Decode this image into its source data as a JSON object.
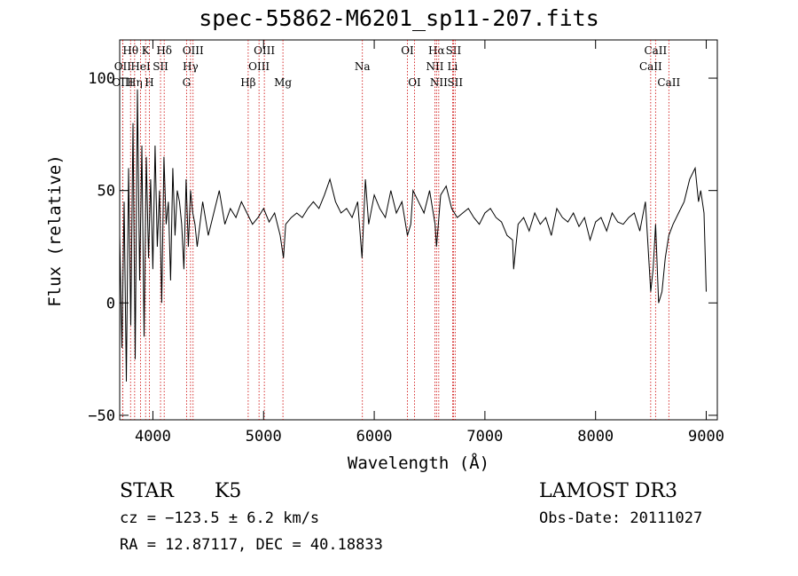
{
  "chart_data": {
    "type": "line",
    "title": "spec-55862-M6201_sp11-207.fits",
    "xlabel": "Wavelength (Å)",
    "ylabel": "Flux (relative)",
    "xlim": [
      3700,
      9100
    ],
    "ylim": [
      -52,
      117
    ],
    "x_ticks": [
      4000,
      5000,
      6000,
      7000,
      8000,
      9000
    ],
    "x_tick_labels": [
      "4000",
      "5000",
      "6000",
      "7000",
      "8000",
      "9000"
    ],
    "y_ticks": [
      -50,
      0,
      50,
      100
    ],
    "y_tick_labels": [
      "−50",
      "0",
      "50",
      "100"
    ],
    "line_color": "#000000",
    "marker_color": "#cc0000",
    "series": [
      {
        "name": "flux",
        "x": [
          3700,
          3720,
          3740,
          3760,
          3780,
          3800,
          3820,
          3840,
          3860,
          3880,
          3900,
          3920,
          3940,
          3960,
          3980,
          4000,
          4020,
          4040,
          4060,
          4080,
          4100,
          4120,
          4140,
          4160,
          4180,
          4200,
          4220,
          4240,
          4260,
          4280,
          4300,
          4320,
          4340,
          4360,
          4380,
          4400,
          4450,
          4500,
          4550,
          4600,
          4650,
          4700,
          4750,
          4800,
          4850,
          4900,
          4950,
          5000,
          5050,
          5100,
          5150,
          5180,
          5200,
          5250,
          5300,
          5350,
          5400,
          5450,
          5500,
          5550,
          5600,
          5650,
          5700,
          5750,
          5800,
          5850,
          5890,
          5920,
          5950,
          6000,
          6050,
          6100,
          6150,
          6200,
          6250,
          6300,
          6330,
          6350,
          6400,
          6450,
          6500,
          6550,
          6563,
          6600,
          6650,
          6700,
          6750,
          6800,
          6850,
          6900,
          6950,
          7000,
          7050,
          7100,
          7150,
          7200,
          7250,
          7260,
          7300,
          7350,
          7400,
          7450,
          7500,
          7550,
          7600,
          7650,
          7700,
          7750,
          7800,
          7850,
          7900,
          7950,
          8000,
          8050,
          8100,
          8150,
          8200,
          8250,
          8300,
          8350,
          8400,
          8450,
          8498,
          8520,
          8542,
          8570,
          8600,
          8630,
          8662,
          8700,
          8750,
          8800,
          8850,
          8900,
          8930,
          8950,
          8980,
          9000
        ],
        "y": [
          30,
          -20,
          45,
          -35,
          60,
          -10,
          80,
          -25,
          95,
          10,
          70,
          -15,
          65,
          20,
          55,
          15,
          70,
          25,
          50,
          0,
          65,
          35,
          45,
          10,
          60,
          30,
          50,
          45,
          35,
          15,
          55,
          25,
          50,
          40,
          35,
          25,
          45,
          30,
          40,
          50,
          35,
          42,
          38,
          45,
          40,
          35,
          38,
          42,
          36,
          40,
          30,
          20,
          35,
          38,
          40,
          38,
          42,
          45,
          42,
          48,
          55,
          45,
          40,
          42,
          38,
          45,
          20,
          55,
          35,
          48,
          42,
          38,
          50,
          40,
          45,
          30,
          35,
          50,
          45,
          40,
          50,
          35,
          25,
          48,
          52,
          42,
          38,
          40,
          42,
          38,
          35,
          40,
          42,
          38,
          36,
          30,
          28,
          15,
          35,
          38,
          32,
          40,
          35,
          38,
          30,
          42,
          38,
          36,
          40,
          34,
          38,
          28,
          36,
          38,
          32,
          40,
          36,
          35,
          38,
          40,
          32,
          45,
          5,
          15,
          35,
          0,
          5,
          20,
          30,
          35,
          40,
          45,
          55,
          60,
          45,
          50,
          40,
          5
        ],
        "values": [
          30,
          -20,
          45,
          -35,
          60,
          -10,
          80,
          -25,
          95,
          10,
          70,
          -15,
          65,
          20,
          55,
          15,
          70,
          25,
          50,
          0,
          65,
          35,
          45,
          10,
          60,
          30,
          50,
          45,
          35,
          15,
          55,
          25,
          50,
          40,
          35,
          25,
          45,
          30,
          40,
          50,
          35,
          42,
          38,
          45,
          40,
          35,
          38,
          42,
          36,
          40,
          30,
          20,
          35,
          38,
          40,
          38,
          42,
          45,
          42,
          48,
          55,
          45,
          40,
          42,
          38,
          45,
          20,
          55,
          35,
          48,
          42,
          38,
          50,
          40,
          45,
          30,
          35,
          50,
          45,
          40,
          50,
          35,
          25,
          48,
          52,
          42,
          38,
          40,
          42,
          38,
          35,
          40,
          42,
          38,
          36,
          30,
          28,
          15,
          35,
          38,
          32,
          40,
          35,
          38,
          30,
          42,
          38,
          36,
          40,
          34,
          38,
          28,
          36,
          38,
          32,
          40,
          36,
          35,
          38,
          40,
          32,
          45,
          5,
          15,
          35,
          0,
          5,
          20,
          30,
          35,
          40,
          45,
          55,
          60,
          45,
          50,
          40,
          5
        ]
      }
    ],
    "line_markers": [
      {
        "label": "Hθ",
        "wavelength": 3798,
        "row": 1
      },
      {
        "label": "OII",
        "wavelength": 3727,
        "row": 2
      },
      {
        "label": "OIII",
        "wavelength": 3727,
        "row": 3
      },
      {
        "label": "Hη",
        "wavelength": 3835,
        "row": 3
      },
      {
        "label": "HeI",
        "wavelength": 3889,
        "row": 2
      },
      {
        "label": "K",
        "wavelength": 3934,
        "row": 1
      },
      {
        "label": "H",
        "wavelength": 3968,
        "row": 3
      },
      {
        "label": "SII",
        "wavelength": 4069,
        "row": 2
      },
      {
        "label": "Hδ",
        "wavelength": 4102,
        "row": 1
      },
      {
        "label": "OIII",
        "wavelength": 4363,
        "row": 1
      },
      {
        "label": "Hγ",
        "wavelength": 4340,
        "row": 2
      },
      {
        "label": "G",
        "wavelength": 4304,
        "row": 3
      },
      {
        "label": "Hβ",
        "wavelength": 4861,
        "row": 3
      },
      {
        "label": "OIII",
        "wavelength": 5007,
        "row": 1
      },
      {
        "label": "OIII",
        "wavelength": 4959,
        "row": 2
      },
      {
        "label": "Mg",
        "wavelength": 5175,
        "row": 3
      },
      {
        "label": "Na",
        "wavelength": 5893,
        "row": 2
      },
      {
        "label": "OI",
        "wavelength": 6300,
        "row": 1
      },
      {
        "label": "OI",
        "wavelength": 6364,
        "row": 3
      },
      {
        "label": "Hα",
        "wavelength": 6563,
        "row": 1
      },
      {
        "label": "NII",
        "wavelength": 6548,
        "row": 2
      },
      {
        "label": "NII",
        "wavelength": 6583,
        "row": 3
      },
      {
        "label": "SII",
        "wavelength": 6716,
        "row": 1
      },
      {
        "label": "Li",
        "wavelength": 6708,
        "row": 2
      },
      {
        "label": "SII",
        "wavelength": 6731,
        "row": 3
      },
      {
        "label": "CaII",
        "wavelength": 8542,
        "row": 1
      },
      {
        "label": "CaII",
        "wavelength": 8498,
        "row": 2
      },
      {
        "label": "CaII",
        "wavelength": 8662,
        "row": 3
      }
    ]
  },
  "footer": {
    "object_class": "STAR",
    "subclass": "K5",
    "survey": "LAMOST DR3",
    "cz": "cz = −123.5 ± 6.2 km/s",
    "obs_date": "Obs-Date: 20111027",
    "coords": "RA =  12.87117, DEC =  40.18833"
  }
}
